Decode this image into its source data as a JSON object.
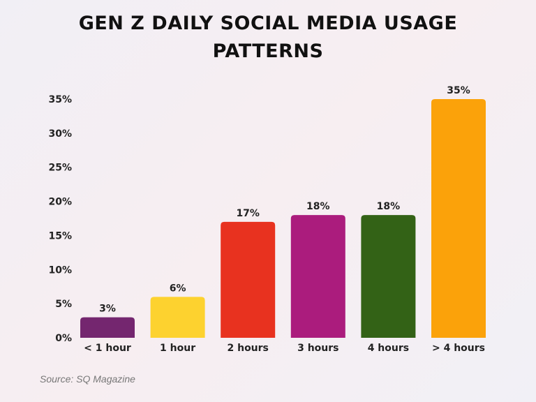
{
  "chart_data": {
    "type": "bar",
    "title_lines": [
      "GEN Z DAILY SOCIAL MEDIA USAGE",
      "PATTERNS"
    ],
    "categories": [
      "< 1 hour",
      "1 hour",
      "2 hours",
      "3 hours",
      "4 hours",
      "> 4 hours"
    ],
    "values": [
      3,
      6,
      17,
      18,
      18,
      35
    ],
    "data_labels": [
      "3%",
      "6%",
      "17%",
      "18%",
      "18%",
      "35%"
    ],
    "colors": [
      "#74266f",
      "#fdd22f",
      "#e8321f",
      "#ab1c7d",
      "#336216",
      "#fba20a"
    ],
    "ylim": [
      0,
      35
    ],
    "yticks": [
      0,
      5,
      10,
      15,
      20,
      25,
      30,
      35
    ],
    "ytick_labels": [
      "0%",
      "5%",
      "10%",
      "15%",
      "20%",
      "25%",
      "30%",
      "35%"
    ],
    "xlabel": "",
    "ylabel": "",
    "grid": false,
    "legend": "none"
  },
  "source": "Source: SQ Magazine"
}
